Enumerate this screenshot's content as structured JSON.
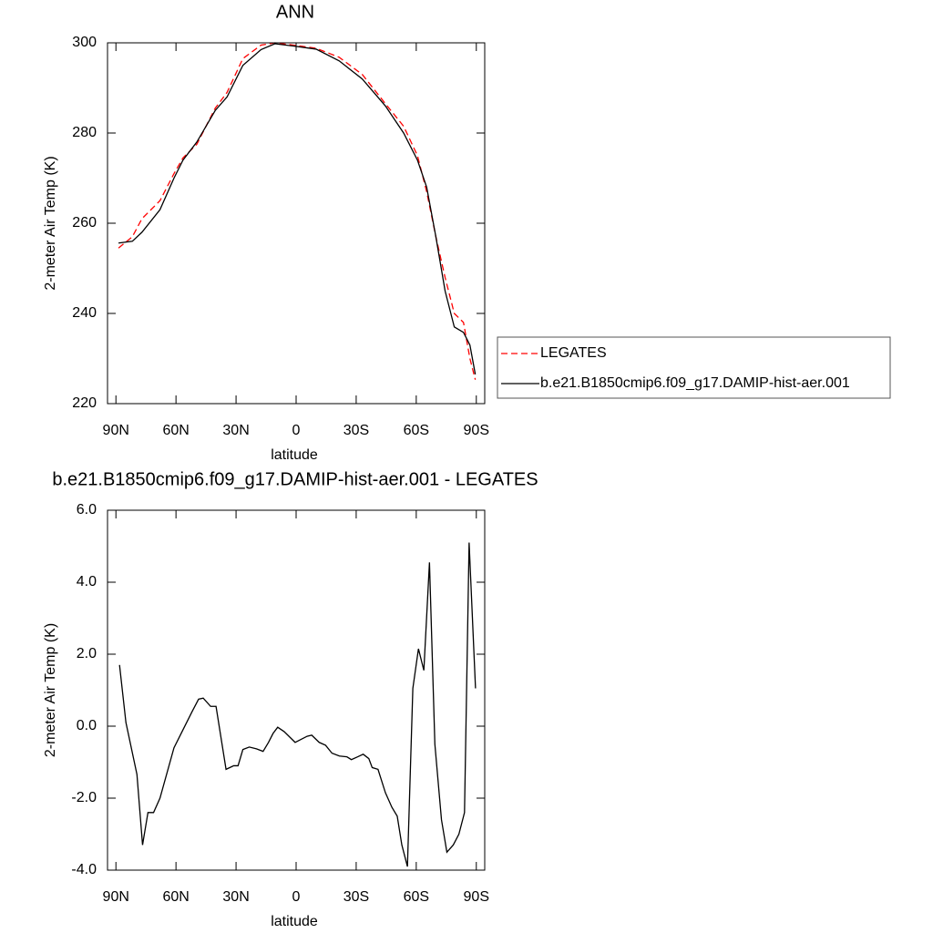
{
  "chart_data": [
    {
      "type": "line",
      "title": "ANN",
      "xlabel": "latitude",
      "ylabel": "2-meter Air Temp (K)",
      "x": [
        88.7,
        81.8,
        77,
        68,
        61,
        56.5,
        49.6,
        40.4,
        34.5,
        26.6,
        17.5,
        10.6,
        1.4,
        -10,
        -21.5,
        -33,
        -44.6,
        -53.7,
        -60.6,
        -65.2,
        -69.8,
        -74.4,
        -79,
        -83.6,
        -86.8,
        -89.5
      ],
      "series": [
        {
          "name": "LEGATES",
          "color": "#ff0000",
          "style": "dashed",
          "values": [
            254.5,
            257,
            261,
            265,
            271,
            274.5,
            277.5,
            285.5,
            289,
            296.5,
            299.5,
            300,
            299.5,
            298.8,
            296.8,
            293,
            286.5,
            281.5,
            275,
            267,
            257,
            248,
            240,
            238,
            230,
            225.3
          ]
        },
        {
          "name": "b.e21.B1850cmip6.f09_g17.DAMIP-hist-aer.001",
          "color": "#000000",
          "style": "solid",
          "values": [
            255.6,
            256,
            258,
            263,
            270,
            274,
            278,
            285,
            288,
            295,
            298.5,
            299.8,
            299.3,
            298.6,
            296,
            292,
            286,
            280,
            274,
            268,
            257,
            245,
            237,
            235.8,
            233,
            226.5
          ]
        }
      ],
      "xlim": [
        94.2,
        -94.2
      ],
      "xticks": [
        {
          "value": 90,
          "label": "90N"
        },
        {
          "value": 60,
          "label": "60N"
        },
        {
          "value": 30,
          "label": "30N"
        },
        0,
        {
          "value": -30,
          "label": "30S"
        },
        {
          "value": -60,
          "label": "60S"
        },
        {
          "value": -90,
          "label": "90S"
        }
      ],
      "ylim": [
        220,
        300
      ],
      "yticks": [
        220,
        240,
        260,
        280,
        300
      ],
      "legend": "right"
    },
    {
      "type": "line",
      "title": "b.e21.B1850cmip6.f09_g17.DAMIP-hist-aer.001 - LEGATES",
      "xlabel": "latitude",
      "ylabel": "2-meter Air Temp (K)",
      "x": [
        88.2,
        85,
        79.5,
        76.7,
        74,
        71.2,
        68,
        61,
        56.5,
        52,
        48.7,
        46.4,
        42.7,
        40,
        35,
        31.2,
        29,
        26.6,
        23.4,
        19.8,
        16.5,
        13.8,
        11.5,
        9.2,
        6,
        0.5,
        -5.5,
        -7.8,
        -11.5,
        -14.7,
        -17.9,
        -21.6,
        -25.3,
        -27.6,
        -30.8,
        -33.5,
        -36.3,
        -38,
        -40.9,
        -44.6,
        -47.8,
        -50.5,
        -52.8,
        -55.6,
        -58.3,
        -61.1,
        -63.8,
        -66.6,
        -69.3,
        -72.6,
        -75.3,
        -78.5,
        -81.3,
        -84.1,
        -86.4,
        -89.6
      ],
      "values": [
        1.7,
        0.1,
        -1.34,
        -3.3,
        -2.4,
        -2.4,
        -2.0,
        -0.6,
        -0.1,
        0.4,
        0.75,
        0.78,
        0.55,
        0.55,
        -1.2,
        -1.1,
        -1.1,
        -0.65,
        -0.58,
        -0.63,
        -0.7,
        -0.45,
        -0.2,
        -0.03,
        -0.15,
        -0.45,
        -0.28,
        -0.25,
        -0.45,
        -0.53,
        -0.75,
        -0.83,
        -0.85,
        -0.93,
        -0.85,
        -0.78,
        -0.9,
        -1.15,
        -1.2,
        -1.85,
        -2.25,
        -2.5,
        -3.3,
        -3.9,
        1.05,
        2.15,
        1.55,
        4.55,
        -0.5,
        -2.6,
        -3.5,
        -3.3,
        -3.0,
        -2.4,
        5.1,
        1.05
      ],
      "color": "#000000",
      "xlim": [
        94.2,
        -94.2
      ],
      "xticks": [
        {
          "value": 90,
          "label": "90N"
        },
        {
          "value": 60,
          "label": "60N"
        },
        {
          "value": 30,
          "label": "30N"
        },
        0,
        {
          "value": -30,
          "label": "30S"
        },
        {
          "value": -60,
          "label": "60S"
        },
        {
          "value": -90,
          "label": "90S"
        }
      ],
      "ylim": [
        -4,
        6
      ],
      "yticks": [
        {
          "value": -4,
          "label": "-4.0"
        },
        {
          "value": -2,
          "label": "-2.0"
        },
        {
          "value": 0,
          "label": "0.0"
        },
        {
          "value": 2,
          "label": "2.0"
        },
        {
          "value": 4,
          "label": "4.0"
        },
        {
          "value": 6,
          "label": "6.0"
        }
      ]
    }
  ]
}
